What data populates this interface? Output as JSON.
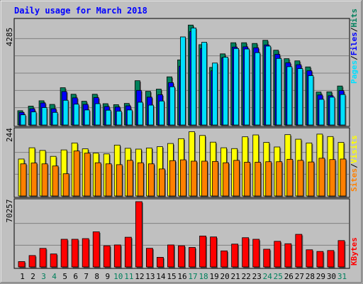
{
  "chart_data": [
    {
      "type": "bar",
      "title": "Daily usage for March 2018",
      "categories": [
        "1",
        "2",
        "3",
        "4",
        "5",
        "6",
        "7",
        "8",
        "9",
        "10",
        "11",
        "12",
        "13",
        "14",
        "15",
        "16",
        "17",
        "18",
        "19",
        "20",
        "21",
        "22",
        "23",
        "24",
        "25",
        "26",
        "27",
        "28",
        "29",
        "30",
        "31"
      ],
      "weekend_days": [
        "3",
        "4",
        "10",
        "11",
        "17",
        "18",
        "24",
        "25",
        "31"
      ],
      "y_max_label": "4285",
      "ylim": [
        0,
        4285
      ],
      "grid": true,
      "legend": [
        "Pages",
        "/",
        "Files",
        "/",
        "Hits"
      ],
      "series": [
        {
          "name": "Hits",
          "color": "#00805c",
          "values": [
            590,
            780,
            1000,
            850,
            1540,
            1270,
            980,
            1270,
            880,
            840,
            890,
            1830,
            1390,
            1480,
            1990,
            2690,
            4130,
            3320,
            2380,
            2940,
            3400,
            3400,
            3370,
            3500,
            3090,
            2740,
            2650,
            2400,
            1360,
            1370,
            1610
          ]
        },
        {
          "name": "Files",
          "color": "#0000ff",
          "values": [
            520,
            670,
            910,
            670,
            1380,
            1120,
            850,
            1130,
            760,
            740,
            790,
            1430,
            1150,
            1250,
            1750,
            2430,
            3860,
            3160,
            2240,
            2780,
            3220,
            3230,
            3190,
            3310,
            2920,
            2570,
            2490,
            2240,
            1240,
            1210,
            1420
          ]
        },
        {
          "name": "Pages",
          "color": "#00e0ff",
          "values": [
            420,
            540,
            720,
            520,
            1020,
            860,
            620,
            880,
            610,
            570,
            620,
            940,
            820,
            990,
            1580,
            3640,
            4010,
            3420,
            2560,
            2800,
            3160,
            3140,
            2990,
            3260,
            2750,
            2410,
            2330,
            2040,
            1060,
            1150,
            1260
          ]
        }
      ]
    },
    {
      "type": "bar",
      "categories": [
        "1",
        "2",
        "3",
        "4",
        "5",
        "6",
        "7",
        "8",
        "9",
        "10",
        "11",
        "12",
        "13",
        "14",
        "15",
        "16",
        "17",
        "18",
        "19",
        "20",
        "21",
        "22",
        "23",
        "24",
        "25",
        "26",
        "27",
        "28",
        "29",
        "30",
        "31"
      ],
      "y_max_label": "244",
      "ylim": [
        0,
        244
      ],
      "grid": true,
      "legend": [
        "Sites",
        "/",
        "Visits"
      ],
      "series": [
        {
          "name": "Visits",
          "color": "#ffff00",
          "values": [
            138,
            180,
            170,
            148,
            172,
            198,
            176,
            160,
            157,
            190,
            178,
            175,
            179,
            184,
            196,
            214,
            240,
            226,
            201,
            180,
            177,
            221,
            228,
            200,
            183,
            229,
            212,
            198,
            231,
            222,
            200
          ]
        },
        {
          "name": "Sites",
          "color": "#ff8000",
          "values": [
            120,
            123,
            120,
            112,
            83,
            168,
            160,
            124,
            120,
            117,
            133,
            124,
            120,
            101,
            132,
            135,
            130,
            130,
            129,
            124,
            133,
            126,
            126,
            128,
            128,
            137,
            133,
            127,
            141,
            136,
            138
          ]
        }
      ]
    },
    {
      "type": "bar",
      "categories": [
        "1",
        "2",
        "3",
        "4",
        "5",
        "6",
        "7",
        "8",
        "9",
        "10",
        "11",
        "12",
        "13",
        "14",
        "15",
        "16",
        "17",
        "18",
        "19",
        "20",
        "21",
        "22",
        "23",
        "24",
        "25",
        "26",
        "27",
        "28",
        "29",
        "30",
        "31"
      ],
      "y_max_label": "70257",
      "ylim": [
        0,
        70257
      ],
      "grid": true,
      "legend": [
        "KBytes"
      ],
      "series": [
        {
          "name": "KBytes",
          "color": "#ff0000",
          "values": [
            5800,
            12300,
            20000,
            14000,
            29800,
            29800,
            30500,
            37800,
            22800,
            23700,
            32000,
            70257,
            20100,
            10400,
            23700,
            22800,
            21000,
            33300,
            32300,
            17300,
            24600,
            31500,
            29800,
            19100,
            27600,
            25000,
            35100,
            18500,
            16700,
            17700,
            28400
          ]
        }
      ]
    }
  ],
  "colors": {
    "background": "#ffffff",
    "frame": "#c0c0c0",
    "plot": "#c0c0c0",
    "title": "#0000ff",
    "weekday_label": "#000000",
    "weekend_label": "#00805c",
    "pages": "#00e0ff",
    "files": "#0000ff",
    "hits": "#00805c",
    "sites": "#ff8000",
    "visits": "#ffff00",
    "kbytes": "#ff0000"
  }
}
